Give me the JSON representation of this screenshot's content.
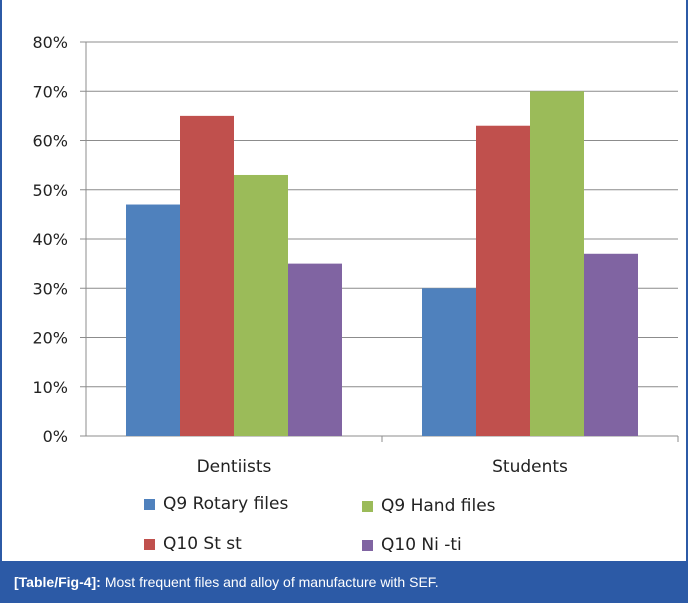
{
  "chart_data": {
    "type": "bar",
    "categories": [
      "Dentiists",
      "Students"
    ],
    "series": [
      {
        "name": "Q9 Rotary files",
        "values": [
          0.47,
          0.3
        ],
        "color": "#4f81bd"
      },
      {
        "name": "Q10 St st",
        "values": [
          0.65,
          0.63
        ],
        "color": "#c0504d"
      },
      {
        "name": "Q9 Hand files",
        "values": [
          0.53,
          0.7
        ],
        "color": "#9bbb59"
      },
      {
        "name": "Q10 Ni -ti",
        "values": [
          0.35,
          0.37
        ],
        "color": "#8064a2"
      }
    ],
    "ylim": [
      0,
      0.8
    ],
    "yticks": [
      "0%",
      "10%",
      "20%",
      "30%",
      "40%",
      "50%",
      "60%",
      "70%",
      "80%"
    ],
    "grid": true,
    "legend_position": "bottom"
  },
  "caption": {
    "ref": "[Table/Fig-4]:",
    "text": "Most frequent files and alloy of manufacture with SEF."
  }
}
